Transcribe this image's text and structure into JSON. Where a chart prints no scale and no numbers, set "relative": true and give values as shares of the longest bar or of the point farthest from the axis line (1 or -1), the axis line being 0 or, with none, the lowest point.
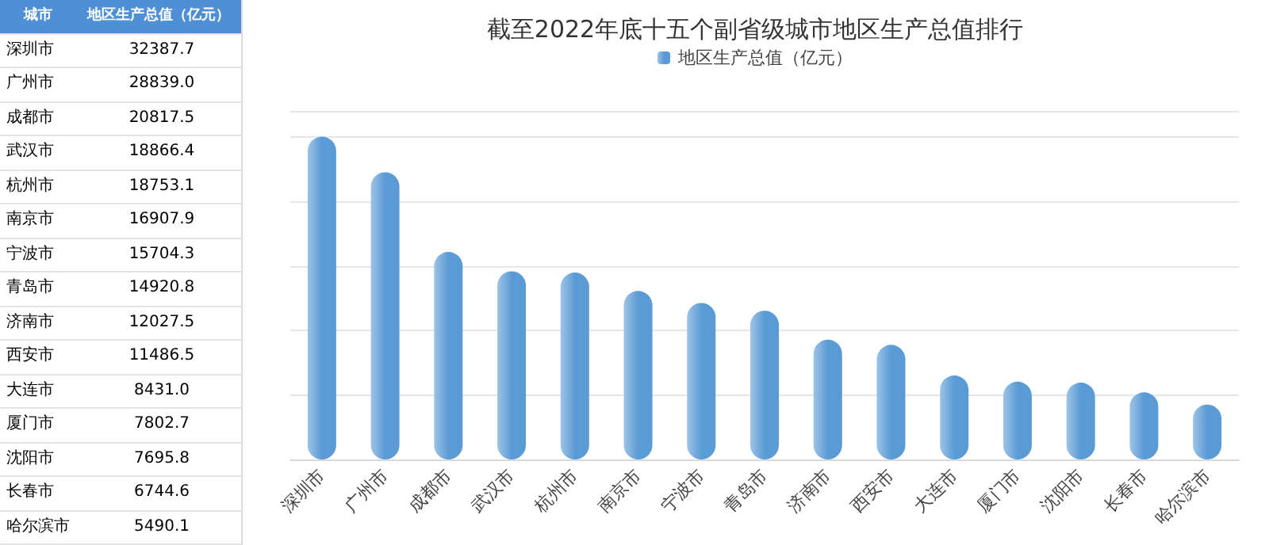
{
  "chart_data": [
    {
      "type": "other",
      "annotations": [
        "城市",
        "地区生产总值（亿元）"
      ],
      "categories": [
        "深圳市",
        "广州市",
        "成都市",
        "武汉市",
        "杭州市",
        "南京市",
        "宁波市",
        "青岛市",
        "济南市",
        "西安市",
        "大连市",
        "厦门市",
        "沈阳市",
        "长春市",
        "哈尔滨市"
      ],
      "value_labels": [
        "32387.7",
        "28839.0",
        "20817.5",
        "18866.4",
        "18753.1",
        "16907.9",
        "15704.3",
        "14920.8",
        "12027.5",
        "11486.5",
        "8431.0",
        "7802.7",
        "7695.8",
        "6744.6",
        "5490.1"
      ]
    },
    {
      "type": "bar",
      "title": "截至2022年底十五个副省级城市地区生产总值排行",
      "categories": [
        "深圳市",
        "广州市",
        "成都市",
        "武汉市",
        "杭州市",
        "南京市",
        "宁波市",
        "青岛市",
        "济南市",
        "西安市",
        "大连市",
        "厦门市",
        "沈阳市",
        "长春市",
        "哈尔滨市"
      ],
      "series": [
        {
          "name": "地区生产总值（亿元）",
          "color": "#5b9bd5",
          "values": [
            1,
            0.89,
            0.643,
            0.583,
            0.579,
            0.522,
            0.485,
            0.461,
            0.371,
            0.355,
            0.26,
            0.241,
            0.238,
            0.208,
            0.17
          ]
        }
      ],
      "relative": true,
      "grid": "y",
      "legend": "top"
    }
  ]
}
